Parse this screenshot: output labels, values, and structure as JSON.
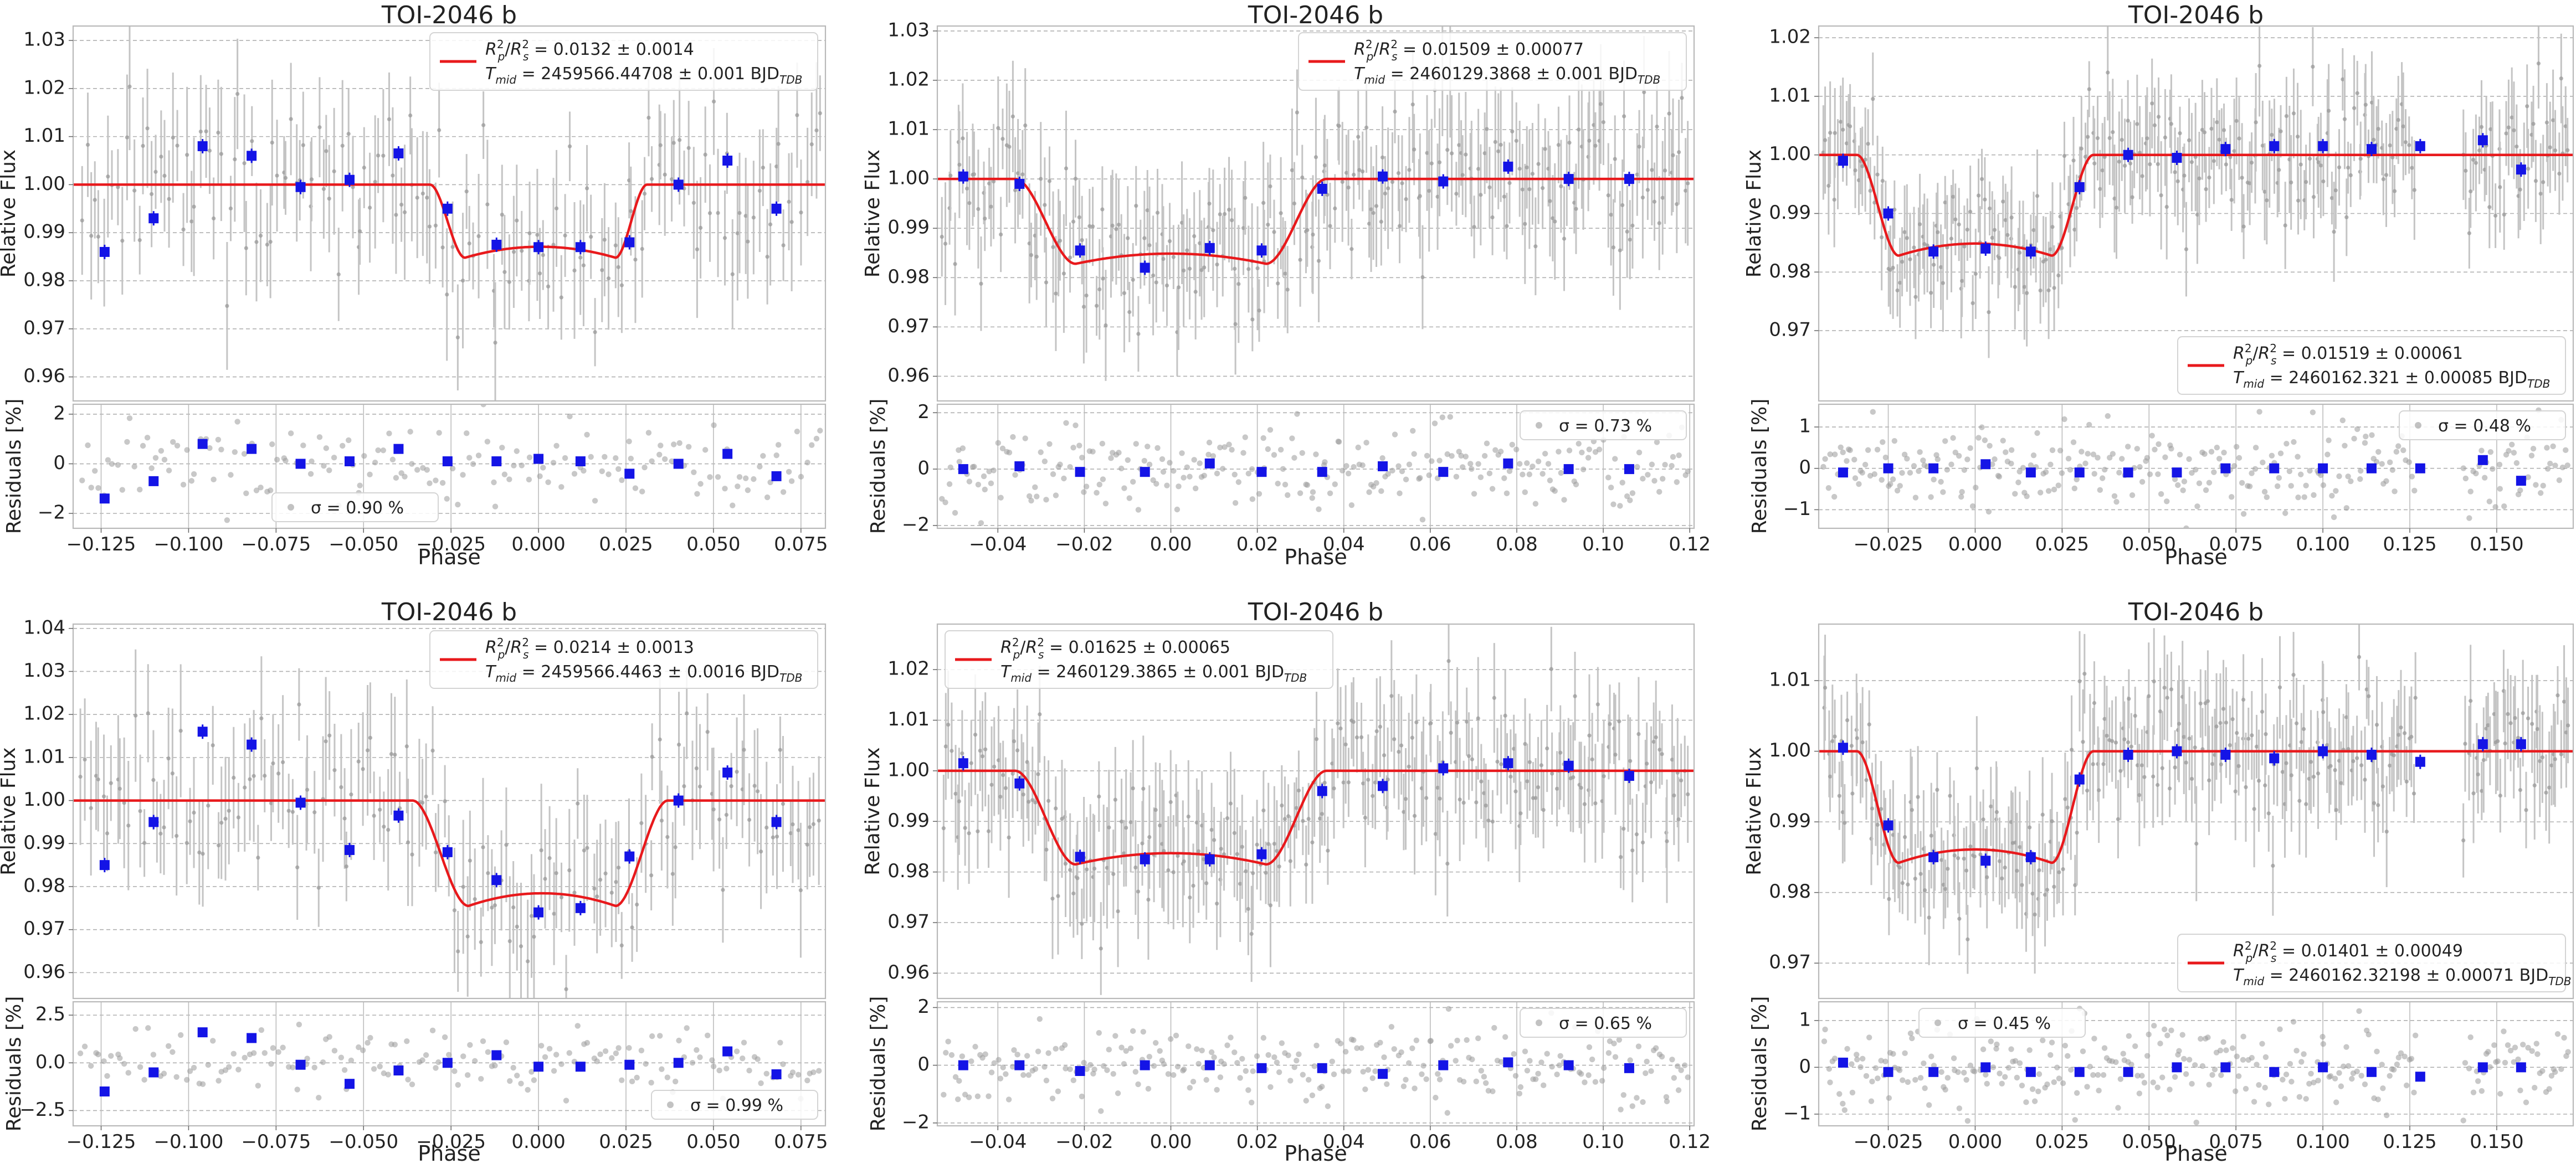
{
  "figure": {
    "rows": 2,
    "cols": 3
  },
  "colors": {
    "model": "#e8191c",
    "binned": "#1414e6",
    "raw": "#9a9a9a",
    "rawbar": "#c4c4c4",
    "grid": "#b0b0b0",
    "frame": "#b9b9b9",
    "text": "#222222"
  },
  "chart_data": [
    {
      "type": "scatter",
      "title": "TOI-2046 b",
      "ylabel": "Relative Flux",
      "ylabel_res": "Residuals [%]",
      "xlabel": "Phase",
      "xlim": [
        -0.133,
        0.082
      ],
      "ylim": [
        0.955,
        1.033
      ],
      "res_ylim": [
        -2.6,
        2.4
      ],
      "xticks": [
        -0.125,
        -0.1,
        -0.075,
        -0.05,
        -0.025,
        0.0,
        0.025,
        0.05,
        0.075
      ],
      "xtick_labels": [
        "−0.125",
        "−0.100",
        "−0.075",
        "−0.050",
        "−0.025",
        "0.000",
        "0.025",
        "0.050",
        "0.075"
      ],
      "yticks": [
        0.96,
        0.97,
        0.98,
        0.99,
        1.0,
        1.01,
        1.02,
        1.03
      ],
      "ytick_labels": [
        "0.96",
        "0.97",
        "0.98",
        "0.99",
        "1.00",
        "1.01",
        "1.02",
        "1.03"
      ],
      "res_yticks": [
        -2,
        0,
        2
      ],
      "res_ytick_labels": [
        "−2",
        "0",
        "2"
      ],
      "legend": {
        "line1_prefix": "R",
        "line1_value": " = 0.0132 ± 0.0014",
        "line2_prefix": "T",
        "line2_sub": "mid",
        "line2_value": " = 2459566.44708 ± 0.001 BJD",
        "line2_unit_sub": "TDB",
        "loc": "top-right"
      },
      "sigma_label": "σ = 0.90 %",
      "sigma_loc": "bottom-center",
      "model": {
        "depth": 0.0152,
        "t1": -0.031,
        "t2": -0.021,
        "t3": 0.022,
        "t4": 0.031,
        "curvature": 0.15
      },
      "raw": {
        "xmin": -0.131,
        "xmax": 0.081,
        "n": 170,
        "scatter": 0.0085,
        "seed": 11,
        "gaps": []
      },
      "binned": {
        "x": [
          -0.124,
          -0.11,
          -0.096,
          -0.082,
          -0.068,
          -0.054,
          -0.04,
          -0.026,
          -0.012,
          0.0,
          0.012,
          0.026,
          0.04,
          0.054,
          0.068
        ],
        "y": [
          0.986,
          0.993,
          1.008,
          1.006,
          0.9995,
          1.001,
          1.0065,
          0.995,
          0.9875,
          0.987,
          0.987,
          0.988,
          1.0,
          1.005,
          0.995
        ],
        "res": [
          -1.4,
          -0.7,
          0.8,
          0.6,
          0.0,
          0.1,
          0.6,
          0.1,
          0.1,
          0.2,
          0.1,
          -0.4,
          0.0,
          0.4,
          -0.5
        ]
      }
    },
    {
      "type": "scatter",
      "title": "TOI-2046 b",
      "ylabel": "Relative Flux",
      "ylabel_res": "Residuals [%]",
      "xlabel": "Phase",
      "xlim": [
        -0.054,
        0.121
      ],
      "ylim": [
        0.955,
        1.031
      ],
      "res_ylim": [
        -2.1,
        2.3
      ],
      "xticks": [
        -0.04,
        -0.02,
        0.0,
        0.02,
        0.04,
        0.06,
        0.08,
        0.1,
        0.12
      ],
      "xtick_labels": [
        "−0.04",
        "−0.02",
        "0.00",
        "0.02",
        "0.04",
        "0.06",
        "0.08",
        "0.10",
        "0.12"
      ],
      "yticks": [
        0.96,
        0.97,
        0.98,
        0.99,
        1.0,
        1.01,
        1.02,
        1.03
      ],
      "ytick_labels": [
        "0.96",
        "0.97",
        "0.98",
        "0.99",
        "1.00",
        "1.01",
        "1.02",
        "1.03"
      ],
      "res_yticks": [
        -2,
        0,
        2
      ],
      "res_ytick_labels": [
        "−2",
        "0",
        "2"
      ],
      "legend": {
        "line1_prefix": "R",
        "line1_value": " = 0.01509 ± 0.00077",
        "line2_prefix": "T",
        "line2_sub": "mid",
        "line2_value": " = 2460129.3868 ± 0.001 BJD",
        "line2_unit_sub": "TDB",
        "loc": "top-right"
      },
      "sigma_label": "σ = 0.73 %",
      "sigma_loc": "top-right",
      "model": {
        "depth": 0.0172,
        "t1": -0.036,
        "t2": -0.022,
        "t3": 0.022,
        "t4": 0.036,
        "curvature": 0.12
      },
      "raw": {
        "xmin": -0.053,
        "xmax": 0.12,
        "n": 260,
        "scatter": 0.0075,
        "seed": 23,
        "gaps": []
      },
      "binned": {
        "x": [
          -0.048,
          -0.035,
          -0.021,
          -0.006,
          0.009,
          0.021,
          0.035,
          0.049,
          0.063,
          0.078,
          0.092,
          0.106
        ],
        "y": [
          1.0005,
          0.999,
          0.9855,
          0.982,
          0.986,
          0.9855,
          0.998,
          1.0005,
          0.9995,
          1.0025,
          1.0,
          1.0
        ],
        "res": [
          0.0,
          0.1,
          -0.1,
          -0.1,
          0.2,
          -0.1,
          -0.1,
          0.1,
          -0.1,
          0.2,
          0.0,
          0.0
        ]
      }
    },
    {
      "type": "scatter",
      "title": "TOI-2046 b",
      "ylabel": "Relative Flux",
      "ylabel_res": "Residuals [%]",
      "xlabel": "Phase",
      "xlim": [
        -0.045,
        0.172
      ],
      "ylim": [
        0.958,
        1.022
      ],
      "res_ylim": [
        -1.45,
        1.55
      ],
      "xticks": [
        -0.025,
        0.0,
        0.025,
        0.05,
        0.075,
        0.1,
        0.125,
        0.15
      ],
      "xtick_labels": [
        "−0.025",
        "0.000",
        "0.025",
        "0.050",
        "0.075",
        "0.100",
        "0.125",
        "0.150"
      ],
      "yticks": [
        0.97,
        0.98,
        0.99,
        1.0,
        1.01,
        1.02
      ],
      "ytick_labels": [
        "0.97",
        "0.98",
        "0.99",
        "1.00",
        "1.01",
        "1.02"
      ],
      "res_yticks": [
        -1,
        0,
        1
      ],
      "res_ytick_labels": [
        "−1",
        "0",
        "1"
      ],
      "legend": {
        "line1_prefix": "R",
        "line1_value": " = 0.01519 ± 0.00061",
        "line2_prefix": "T",
        "line2_sub": "mid",
        "line2_value": " = 2460162.321 ± 0.00085 BJD",
        "line2_unit_sub": "TDB",
        "loc": "bottom-right"
      },
      "sigma_label": "σ = 0.48 %",
      "sigma_loc": "top-right",
      "model": {
        "depth": 0.0172,
        "t1": -0.034,
        "t2": -0.022,
        "t3": 0.022,
        "t4": 0.034,
        "curvature": 0.12
      },
      "raw": {
        "xmin": -0.044,
        "xmax": 0.171,
        "n": 300,
        "scatter": 0.0055,
        "seed": 37,
        "gaps": [
          [
            0.127,
            0.14
          ]
        ]
      },
      "binned": {
        "x": [
          -0.038,
          -0.025,
          -0.012,
          0.003,
          0.016,
          0.03,
          0.044,
          0.058,
          0.072,
          0.086,
          0.1,
          0.114,
          0.128,
          0.146,
          0.157
        ],
        "y": [
          0.999,
          0.99,
          0.9835,
          0.984,
          0.9835,
          0.9945,
          1.0,
          0.9995,
          1.001,
          1.0015,
          1.0015,
          1.001,
          1.0015,
          1.0025,
          0.9975
        ],
        "res": [
          -0.1,
          0.0,
          0.0,
          0.1,
          -0.1,
          -0.1,
          -0.1,
          -0.1,
          0.0,
          0.0,
          0.0,
          0.0,
          0.0,
          0.2,
          -0.3
        ]
      }
    },
    {
      "type": "scatter",
      "title": "TOI-2046 b",
      "ylabel": "Relative Flux",
      "ylabel_res": "Residuals [%]",
      "xlabel": "Phase",
      "xlim": [
        -0.133,
        0.082
      ],
      "ylim": [
        0.954,
        1.041
      ],
      "res_ylim": [
        -3.3,
        3.2
      ],
      "xticks": [
        -0.125,
        -0.1,
        -0.075,
        -0.05,
        -0.025,
        0.0,
        0.025,
        0.05,
        0.075
      ],
      "xtick_labels": [
        "−0.125",
        "−0.100",
        "−0.075",
        "−0.050",
        "−0.025",
        "0.000",
        "0.025",
        "0.050",
        "0.075"
      ],
      "yticks": [
        0.96,
        0.97,
        0.98,
        0.99,
        1.0,
        1.01,
        1.02,
        1.03,
        1.04
      ],
      "ytick_labels": [
        "0.96",
        "0.97",
        "0.98",
        "0.99",
        "1.00",
        "1.01",
        "1.02",
        "1.03",
        "1.04"
      ],
      "res_yticks": [
        -2.5,
        0,
        2.5
      ],
      "res_ytick_labels": [
        "−2.5",
        "0.0",
        "2.5"
      ],
      "legend": {
        "line1_prefix": "R",
        "line1_value": " = 0.0214 ± 0.0013",
        "line2_prefix": "T",
        "line2_sub": "mid",
        "line2_value": " = 2459566.4463 ± 0.0016 BJD",
        "line2_unit_sub": "TDB",
        "loc": "top-right"
      },
      "sigma_label": "σ = 0.99 %",
      "sigma_loc": "bottom-right",
      "model": {
        "depth": 0.0245,
        "t1": -0.036,
        "t2": -0.02,
        "t3": 0.022,
        "t4": 0.037,
        "curvature": 0.12
      },
      "raw": {
        "xmin": -0.131,
        "xmax": 0.081,
        "n": 170,
        "scatter": 0.0095,
        "seed": 53,
        "gaps": []
      },
      "binned": {
        "x": [
          -0.124,
          -0.11,
          -0.096,
          -0.082,
          -0.068,
          -0.054,
          -0.04,
          -0.026,
          -0.012,
          0.0,
          0.012,
          0.026,
          0.04,
          0.054,
          0.068
        ],
        "y": [
          0.985,
          0.995,
          1.016,
          1.013,
          0.9995,
          0.9885,
          0.9965,
          0.988,
          0.9815,
          0.974,
          0.975,
          0.987,
          1.0,
          1.0065,
          0.995
        ],
        "res": [
          -1.5,
          -0.5,
          1.6,
          1.3,
          -0.1,
          -1.1,
          -0.4,
          0.0,
          0.4,
          -0.2,
          -0.2,
          -0.1,
          0.0,
          0.6,
          -0.6
        ]
      }
    },
    {
      "type": "scatter",
      "title": "TOI-2046 b",
      "ylabel": "Relative Flux",
      "ylabel_res": "Residuals [%]",
      "xlabel": "Phase",
      "xlim": [
        -0.054,
        0.121
      ],
      "ylim": [
        0.955,
        1.029
      ],
      "res_ylim": [
        -2.1,
        2.2
      ],
      "xticks": [
        -0.04,
        -0.02,
        0.0,
        0.02,
        0.04,
        0.06,
        0.08,
        0.1,
        0.12
      ],
      "xtick_labels": [
        "−0.04",
        "−0.02",
        "0.00",
        "0.02",
        "0.04",
        "0.06",
        "0.08",
        "0.10",
        "0.12"
      ],
      "yticks": [
        0.96,
        0.97,
        0.98,
        0.99,
        1.0,
        1.01,
        1.02
      ],
      "ytick_labels": [
        "0.96",
        "0.97",
        "0.98",
        "0.99",
        "1.00",
        "1.01",
        "1.02"
      ],
      "res_yticks": [
        -2,
        0,
        2
      ],
      "res_ytick_labels": [
        "−2",
        "0",
        "2"
      ],
      "legend": {
        "line1_prefix": "R",
        "line1_value": " = 0.01625 ± 0.00065",
        "line2_prefix": "T",
        "line2_sub": "mid",
        "line2_value": " = 2460129.3865 ± 0.001 BJD",
        "line2_unit_sub": "TDB",
        "loc": "top-left"
      },
      "sigma_label": "σ = 0.65 %",
      "sigma_loc": "top-right",
      "model": {
        "depth": 0.0185,
        "t1": -0.036,
        "t2": -0.022,
        "t3": 0.022,
        "t4": 0.036,
        "curvature": 0.12
      },
      "raw": {
        "xmin": -0.053,
        "xmax": 0.12,
        "n": 260,
        "scatter": 0.0075,
        "seed": 71,
        "gaps": []
      },
      "binned": {
        "x": [
          -0.048,
          -0.035,
          -0.021,
          -0.006,
          0.009,
          0.021,
          0.035,
          0.049,
          0.063,
          0.078,
          0.092,
          0.106
        ],
        "y": [
          1.0015,
          0.9975,
          0.983,
          0.9825,
          0.9825,
          0.9835,
          0.996,
          0.997,
          1.0005,
          1.0015,
          1.001,
          0.999
        ],
        "res": [
          0.0,
          0.0,
          -0.2,
          0.0,
          0.0,
          -0.1,
          -0.1,
          -0.3,
          0.0,
          0.1,
          0.0,
          -0.1
        ]
      }
    },
    {
      "type": "scatter",
      "title": "TOI-2046 b",
      "ylabel": "Relative Flux",
      "ylabel_res": "Residuals [%]",
      "xlabel": "Phase",
      "xlim": [
        -0.045,
        0.172
      ],
      "ylim": [
        0.965,
        1.018
      ],
      "res_ylim": [
        -1.25,
        1.4
      ],
      "xticks": [
        -0.025,
        0.0,
        0.025,
        0.05,
        0.075,
        0.1,
        0.125,
        0.15
      ],
      "xtick_labels": [
        "−0.025",
        "0.000",
        "0.025",
        "0.050",
        "0.075",
        "0.100",
        "0.125",
        "0.150"
      ],
      "yticks": [
        0.97,
        0.98,
        0.99,
        1.0,
        1.01
      ],
      "ytick_labels": [
        "0.97",
        "0.98",
        "0.99",
        "1.00",
        "1.01"
      ],
      "res_yticks": [
        -1,
        0,
        1
      ],
      "res_ytick_labels": [
        "−1",
        "0",
        "1"
      ],
      "legend": {
        "line1_prefix": "R",
        "line1_value": " = 0.01401 ± 0.00049",
        "line2_prefix": "T",
        "line2_sub": "mid",
        "line2_value": " = 2460162.32198 ± 0.00071 BJD",
        "line2_unit_sub": "TDB",
        "loc": "bottom-right"
      },
      "sigma_label": "σ = 0.45 %",
      "sigma_loc": "top-center",
      "model": {
        "depth": 0.0158,
        "t1": -0.034,
        "t2": -0.022,
        "t3": 0.022,
        "t4": 0.034,
        "curvature": 0.12
      },
      "raw": {
        "xmin": -0.044,
        "xmax": 0.171,
        "n": 300,
        "scatter": 0.005,
        "seed": 89,
        "gaps": [
          [
            0.127,
            0.14
          ]
        ]
      },
      "binned": {
        "x": [
          -0.038,
          -0.025,
          -0.012,
          0.003,
          0.016,
          0.03,
          0.044,
          0.058,
          0.072,
          0.086,
          0.1,
          0.114,
          0.128,
          0.146,
          0.157
        ],
        "y": [
          1.0005,
          0.9895,
          0.985,
          0.9845,
          0.985,
          0.996,
          0.9995,
          1.0,
          0.9995,
          0.999,
          1.0,
          0.9995,
          0.9985,
          1.001,
          1.001
        ],
        "res": [
          0.1,
          -0.1,
          -0.1,
          0.0,
          -0.1,
          -0.1,
          -0.1,
          0.0,
          0.0,
          -0.1,
          0.0,
          -0.1,
          -0.2,
          0.0,
          0.0
        ]
      }
    }
  ]
}
